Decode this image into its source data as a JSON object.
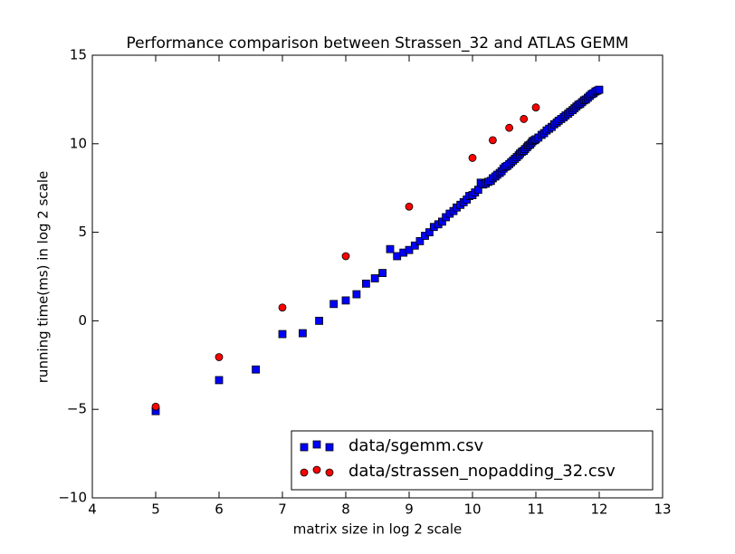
{
  "chart_data": {
    "type": "scatter",
    "title": "Performance comparison between Strassen_32 and ATLAS GEMM",
    "xlabel": "matrix size in log 2 scale",
    "ylabel": "running time(ms) in log 2 scale",
    "xlim": [
      4,
      13
    ],
    "ylim": [
      -10,
      15
    ],
    "xticks": [
      4,
      5,
      6,
      7,
      8,
      9,
      10,
      11,
      12,
      13
    ],
    "yticks": [
      {
        "value": -10,
        "label": "−10"
      },
      {
        "value": -5,
        "label": "−5"
      },
      0,
      5,
      10,
      15
    ],
    "legend": "lower right",
    "series": [
      {
        "name": "data/sgemm.csv",
        "color": "#0000ff",
        "marker": "square",
        "x": [
          5,
          6,
          6.58,
          7,
          7.32,
          7.58,
          7.81,
          8,
          8.17,
          8.32,
          8.46,
          8.58,
          8.7,
          8.81,
          8.91,
          9,
          9.09,
          9.17,
          9.25,
          9.32,
          9.39,
          9.46,
          9.52,
          9.58,
          9.64,
          9.7,
          9.75,
          9.81,
          9.86,
          9.91,
          9.95,
          10,
          10.04,
          10.09,
          10.13,
          10.17,
          10.21,
          10.25,
          10.29,
          10.32,
          10.36,
          10.39,
          10.43,
          10.46,
          10.49,
          10.52,
          10.55,
          10.58,
          10.61,
          10.64,
          10.67,
          10.7,
          10.73,
          10.75,
          10.78,
          10.81,
          10.83,
          10.86,
          10.88,
          10.91,
          10.93,
          10.95,
          10.98,
          11,
          11.04,
          11.09,
          11.13,
          11.17,
          11.21,
          11.25,
          11.29,
          11.33,
          11.36,
          11.4,
          11.44,
          11.47,
          11.51,
          11.54,
          11.58,
          11.61,
          11.64,
          11.67,
          11.7,
          11.73,
          11.76,
          11.79,
          11.82,
          11.85,
          11.88,
          11.91,
          11.94,
          11.97,
          12
        ],
        "y": [
          -5.1,
          -3.35,
          -2.75,
          -0.75,
          -0.7,
          0,
          0.95,
          1.15,
          1.5,
          2.1,
          2.4,
          2.7,
          4.05,
          3.65,
          3.85,
          4,
          4.25,
          4.5,
          4.8,
          5,
          5.3,
          5.45,
          5.6,
          5.85,
          6.05,
          6.2,
          6.4,
          6.55,
          6.7,
          6.85,
          7.05,
          7.1,
          7.25,
          7.4,
          7.8,
          7.7,
          7.75,
          7.85,
          7.9,
          8.05,
          8.15,
          8.25,
          8.35,
          8.45,
          8.6,
          8.7,
          8.75,
          8.85,
          8.95,
          9.05,
          9.15,
          9.25,
          9.35,
          9.45,
          9.55,
          9.6,
          9.7,
          9.8,
          9.9,
          9.95,
          10.05,
          10.15,
          10.2,
          10.25,
          10.35,
          10.5,
          10.6,
          10.75,
          10.85,
          10.95,
          11.1,
          11.2,
          11.3,
          11.4,
          11.5,
          11.6,
          11.7,
          11.8,
          11.9,
          12,
          12.1,
          12.2,
          12.25,
          12.35,
          12.45,
          12.5,
          12.6,
          12.7,
          12.8,
          12.85,
          12.95,
          13,
          13.05
        ]
      },
      {
        "name": "data/strassen_nopadding_32.csv",
        "color": "#ff0000",
        "marker": "circle",
        "x": [
          5,
          6,
          7,
          8,
          9,
          10,
          10.32,
          10.58,
          10.81,
          11
        ],
        "y": [
          -4.85,
          -2.05,
          0.75,
          3.65,
          6.45,
          9.2,
          10.2,
          10.9,
          11.4,
          12.05
        ]
      }
    ]
  }
}
